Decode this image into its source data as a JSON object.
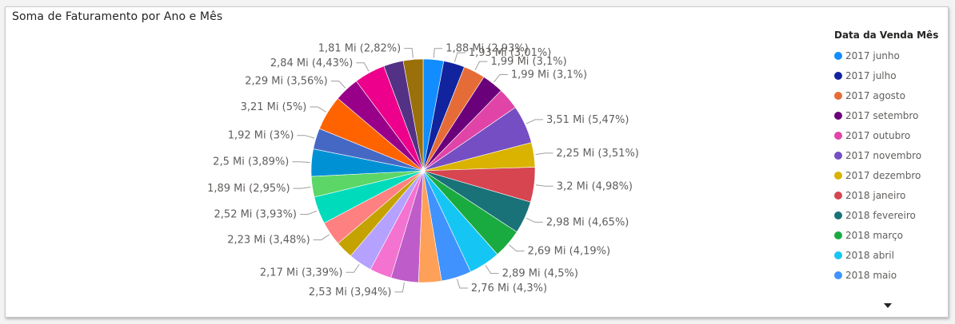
{
  "visual": {
    "title": "Soma de Faturamento por Ano e Mês",
    "legend_title": "Data da Venda Mês"
  },
  "chart_data": {
    "type": "pie",
    "title": "Soma de Faturamento por Ano e Mês",
    "legend_title": "Data da Venda Mês",
    "legend_position": "right",
    "slices": [
      {
        "name": "2017 junho",
        "label": "1,88 Mi (2,93%)",
        "value": 1.88,
        "percent": 2.93,
        "color": "#118DFF"
      },
      {
        "name": "2017 julho",
        "label": "1,93 Mi (3,01%)",
        "value": 1.93,
        "percent": 3.01,
        "color": "#12239E"
      },
      {
        "name": "2017 agosto",
        "label": "1,99 Mi (3,1%)",
        "value": 1.99,
        "percent": 3.1,
        "color": "#E66C37"
      },
      {
        "name": "2017 setembro",
        "label": "1,99 Mi (3,1%)",
        "value": 1.99,
        "percent": 3.1,
        "color": "#6B007B"
      },
      {
        "name": "2017 outubro",
        "label": "",
        "value": 1.99,
        "percent": 3.1,
        "color": "#E044A7"
      },
      {
        "name": "2017 novembro",
        "label": "3,51 Mi (5,47%)",
        "value": 3.51,
        "percent": 5.47,
        "color": "#744EC2"
      },
      {
        "name": "2017 dezembro",
        "label": "2,25 Mi (3,51%)",
        "value": 2.25,
        "percent": 3.51,
        "color": "#D9B300"
      },
      {
        "name": "2018 janeiro",
        "label": "3,2 Mi (4,98%)",
        "value": 3.2,
        "percent": 4.98,
        "color": "#D64550"
      },
      {
        "name": "2018 fevereiro",
        "label": "2,98 Mi (4,65%)",
        "value": 2.98,
        "percent": 4.65,
        "color": "#197278"
      },
      {
        "name": "2018 março",
        "label": "2,69 Mi (4,19%)",
        "value": 2.69,
        "percent": 4.19,
        "color": "#1AAB40"
      },
      {
        "name": "2018 abril",
        "label": "2,89 Mi (4,5%)",
        "value": 2.89,
        "percent": 4.5,
        "color": "#15C6F4"
      },
      {
        "name": "2018 maio",
        "label": "2,76 Mi (4,3%)",
        "value": 2.76,
        "percent": 4.3,
        "color": "#4092FF"
      },
      {
        "label": "",
        "value": 2.1,
        "percent": 3.28,
        "color": "#FFA058"
      },
      {
        "label": "2,53 Mi (3,94%)",
        "value": 2.53,
        "percent": 3.94,
        "color": "#BE5DC9"
      },
      {
        "label": "",
        "value": 2.0,
        "percent": 3.12,
        "color": "#F472D0"
      },
      {
        "label": "2,17 Mi (3,39%)",
        "value": 2.17,
        "percent": 3.39,
        "color": "#B5A1FF"
      },
      {
        "label": "",
        "value": 1.6,
        "percent": 2.5,
        "color": "#C4A200"
      },
      {
        "label": "2,23 Mi (3,48%)",
        "value": 2.23,
        "percent": 3.48,
        "color": "#FF8080"
      },
      {
        "label": "2,52 Mi (3,93%)",
        "value": 2.52,
        "percent": 3.93,
        "color": "#00DBBC"
      },
      {
        "label": "1,89 Mi (2,95%)",
        "value": 1.89,
        "percent": 2.95,
        "color": "#5BD667"
      },
      {
        "label": "2,5 Mi (3,89%)",
        "value": 2.5,
        "percent": 3.89,
        "color": "#0091D5"
      },
      {
        "label": "1,92 Mi (3%)",
        "value": 1.92,
        "percent": 3.0,
        "color": "#4668C5"
      },
      {
        "label": "3,21 Mi (5%)",
        "value": 3.21,
        "percent": 5.0,
        "color": "#FF6300"
      },
      {
        "label": "2,29 Mi (3,56%)",
        "value": 2.29,
        "percent": 3.56,
        "color": "#99008A"
      },
      {
        "label": "2,84 Mi (4,43%)",
        "value": 2.84,
        "percent": 4.43,
        "color": "#EC008C"
      },
      {
        "label": "",
        "value": 1.81,
        "percent": 2.82,
        "color": "#533285"
      },
      {
        "label": "1,81 Mi (2,82%)",
        "value": 1.81,
        "percent": 2.82,
        "color": "#99700A"
      }
    ]
  }
}
